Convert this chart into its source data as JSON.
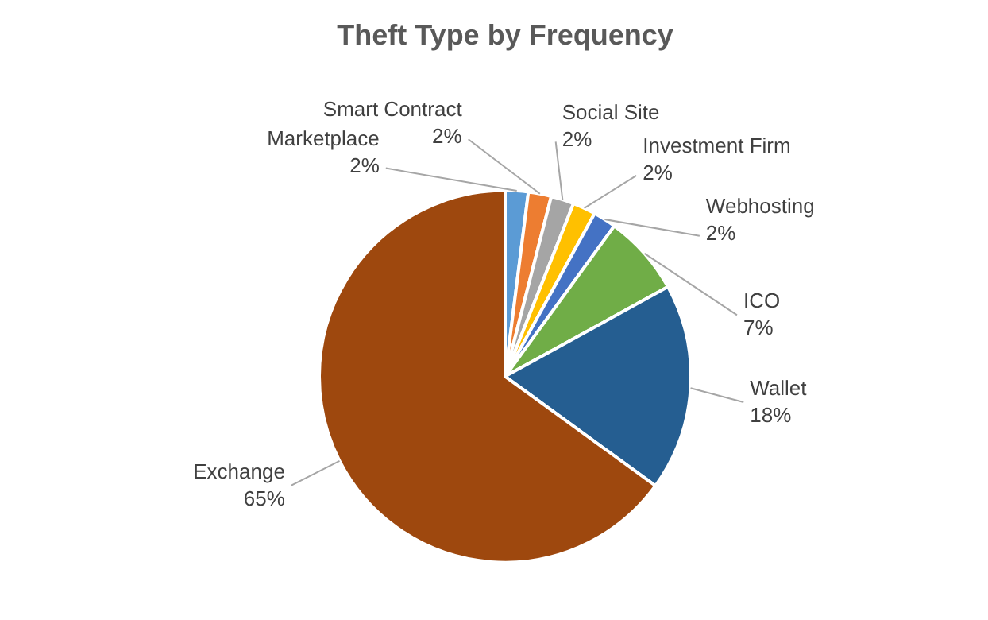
{
  "chart_data": {
    "type": "pie",
    "title": "Theft Type by Frequency",
    "categories": [
      "Marketplace",
      "Smart Contract",
      "Social Site",
      "Investment Firm",
      "Webhosting",
      "ICO",
      "Wallet",
      "Exchange"
    ],
    "values": [
      2,
      2,
      2,
      2,
      2,
      7,
      18,
      65
    ],
    "value_labels": [
      "2%",
      "2%",
      "2%",
      "2%",
      "2%",
      "7%",
      "18%",
      "65%"
    ],
    "colors": [
      "#5b9bd5",
      "#ed7d31",
      "#a5a5a5",
      "#ffc000",
      "#4472c4",
      "#70ad47",
      "#255e91",
      "#9e480e"
    ],
    "legend": false
  }
}
